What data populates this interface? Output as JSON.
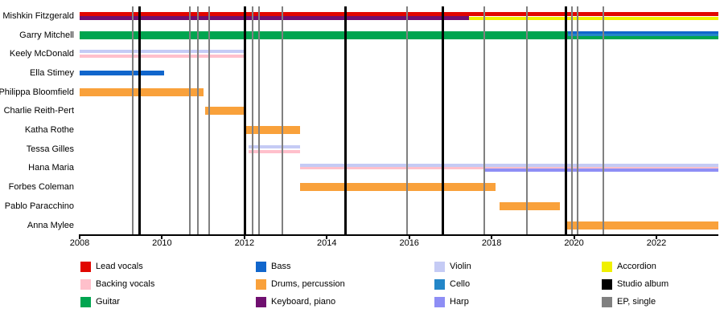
{
  "chart_data": {
    "type": "bar",
    "subtype": "band-membership-timeline",
    "x_axis": {
      "start": 2008,
      "end": 2023.5,
      "ticks": [
        2008,
        2010,
        2012,
        2014,
        2016,
        2018,
        2020,
        2022
      ],
      "tick_labels": [
        "2008",
        "2010",
        "2012",
        "2014",
        "2016",
        "2018",
        "2020",
        "2022"
      ]
    },
    "colors": {
      "lead_vocals": "#e10600",
      "backing_vocals": "#ffc0cb",
      "guitar": "#00a550",
      "bass": "#1166cc",
      "drums": "#f9a13b",
      "keyboard_piano": "#701070",
      "violin": "#c5cbf5",
      "cello": "#2386c8",
      "harp": "#8e8ef5",
      "accordion": "#f0f000",
      "album": "#000000",
      "ep": "#808080"
    },
    "members": [
      {
        "name": "Mishkin Fitzgerald",
        "parts": [
          {
            "role": "lead vocals",
            "color": "lead_vocals",
            "start": 2008,
            "end": 2023.5,
            "lane": "top",
            "h": 5
          },
          {
            "role": "keyboard, piano",
            "color": "keyboard_piano",
            "start": 2008,
            "end": 2017.45,
            "lane": "bottom",
            "h": 5
          },
          {
            "role": "accordion",
            "color": "accordion",
            "start": 2017.45,
            "end": 2023.5,
            "lane": "bottom",
            "h": 4
          }
        ]
      },
      {
        "name": "Garry Mitchell",
        "parts": [
          {
            "role": "guitar",
            "color": "guitar",
            "start": 2008,
            "end": 2019.85,
            "lane": "full",
            "h": 10
          },
          {
            "role": "bass",
            "color": "bass",
            "start": 2019.85,
            "end": 2023.5,
            "lane": "top",
            "h": 4
          },
          {
            "role": "cello",
            "color": "cello",
            "start": 2019.85,
            "end": 2023.5,
            "lane": "middle",
            "h": 3
          },
          {
            "role": "guitar",
            "color": "guitar",
            "start": 2019.85,
            "end": 2023.5,
            "lane": "bottom",
            "h": 4
          }
        ]
      },
      {
        "name": "Keely McDonald",
        "parts": [
          {
            "role": "violin",
            "color": "violin",
            "start": 2008,
            "end": 2012.05,
            "lane": "top",
            "h": 4
          },
          {
            "role": "backing vocals",
            "color": "backing_vocals",
            "start": 2008,
            "end": 2012.05,
            "lane": "bottom",
            "h": 4
          }
        ]
      },
      {
        "name": "Ella Stimey",
        "parts": [
          {
            "role": "bass",
            "color": "bass",
            "start": 2008,
            "end": 2010.05,
            "lane": "middle",
            "h": 6
          }
        ]
      },
      {
        "name": "Philippa Bloomfield",
        "parts": [
          {
            "role": "drums, percussion",
            "color": "drums",
            "start": 2008,
            "end": 2011.0,
            "lane": "full",
            "h": 10
          }
        ]
      },
      {
        "name": "Charlie Reith-Pert",
        "parts": [
          {
            "role": "drums, percussion",
            "color": "drums",
            "start": 2011.05,
            "end": 2012.0,
            "lane": "full",
            "h": 10
          }
        ]
      },
      {
        "name": "Katha Rothe",
        "parts": [
          {
            "role": "drums, percussion",
            "color": "drums",
            "start": 2012.05,
            "end": 2013.35,
            "lane": "full",
            "h": 10
          }
        ]
      },
      {
        "name": "Tessa Gilles",
        "parts": [
          {
            "role": "violin",
            "color": "violin",
            "start": 2012.1,
            "end": 2013.35,
            "lane": "top",
            "h": 4
          },
          {
            "role": "backing vocals",
            "color": "backing_vocals",
            "start": 2012.1,
            "end": 2013.35,
            "lane": "bottom",
            "h": 4
          }
        ]
      },
      {
        "name": "Hana Maria",
        "parts": [
          {
            "role": "violin",
            "color": "violin",
            "start": 2013.35,
            "end": 2023.5,
            "lane": "top",
            "h": 4
          },
          {
            "role": "backing vocals",
            "color": "backing_vocals",
            "start": 2013.35,
            "end": 2023.5,
            "lane": "middle",
            "h": 3
          },
          {
            "role": "harp",
            "color": "harp",
            "start": 2017.85,
            "end": 2023.5,
            "lane": "bottom",
            "h": 4
          }
        ]
      },
      {
        "name": "Forbes Coleman",
        "parts": [
          {
            "role": "drums, percussion",
            "color": "drums",
            "start": 2013.35,
            "end": 2018.1,
            "lane": "full",
            "h": 10
          }
        ]
      },
      {
        "name": "Pablo Paracchino",
        "parts": [
          {
            "role": "drums, percussion",
            "color": "drums",
            "start": 2018.2,
            "end": 2019.65,
            "lane": "full",
            "h": 10
          }
        ]
      },
      {
        "name": "Anna Mylee",
        "parts": [
          {
            "role": "drums, percussion",
            "color": "drums",
            "start": 2019.8,
            "end": 2023.5,
            "lane": "full",
            "h": 10
          }
        ]
      }
    ],
    "releases": [
      {
        "year": 2009.28,
        "type": "ep"
      },
      {
        "year": 2009.45,
        "type": "album"
      },
      {
        "year": 2010.68,
        "type": "ep"
      },
      {
        "year": 2010.88,
        "type": "ep"
      },
      {
        "year": 2011.15,
        "type": "ep"
      },
      {
        "year": 2012.02,
        "type": "album"
      },
      {
        "year": 2012.2,
        "type": "ep"
      },
      {
        "year": 2012.35,
        "type": "ep"
      },
      {
        "year": 2012.92,
        "type": "ep"
      },
      {
        "year": 2014.45,
        "type": "album"
      },
      {
        "year": 2015.95,
        "type": "ep"
      },
      {
        "year": 2016.82,
        "type": "album"
      },
      {
        "year": 2017.82,
        "type": "ep"
      },
      {
        "year": 2018.85,
        "type": "ep"
      },
      {
        "year": 2019.8,
        "type": "album"
      },
      {
        "year": 2019.95,
        "type": "ep"
      },
      {
        "year": 2020.08,
        "type": "ep"
      },
      {
        "year": 2020.72,
        "type": "ep"
      }
    ],
    "legend": [
      {
        "label": "Lead vocals",
        "color": "lead_vocals"
      },
      {
        "label": "Backing vocals",
        "color": "backing_vocals"
      },
      {
        "label": "Guitar",
        "color": "guitar"
      },
      {
        "label": "Bass",
        "color": "bass"
      },
      {
        "label": "Drums, percussion",
        "color": "drums"
      },
      {
        "label": "Keyboard, piano",
        "color": "keyboard_piano"
      },
      {
        "label": "Violin",
        "color": "violin"
      },
      {
        "label": "Cello",
        "color": "cello"
      },
      {
        "label": "Harp",
        "color": "harp"
      },
      {
        "label": "Accordion",
        "color": "accordion"
      },
      {
        "label": "Studio album",
        "color": "album"
      },
      {
        "label": "EP, single",
        "color": "ep"
      }
    ],
    "legend_columns": 4
  }
}
